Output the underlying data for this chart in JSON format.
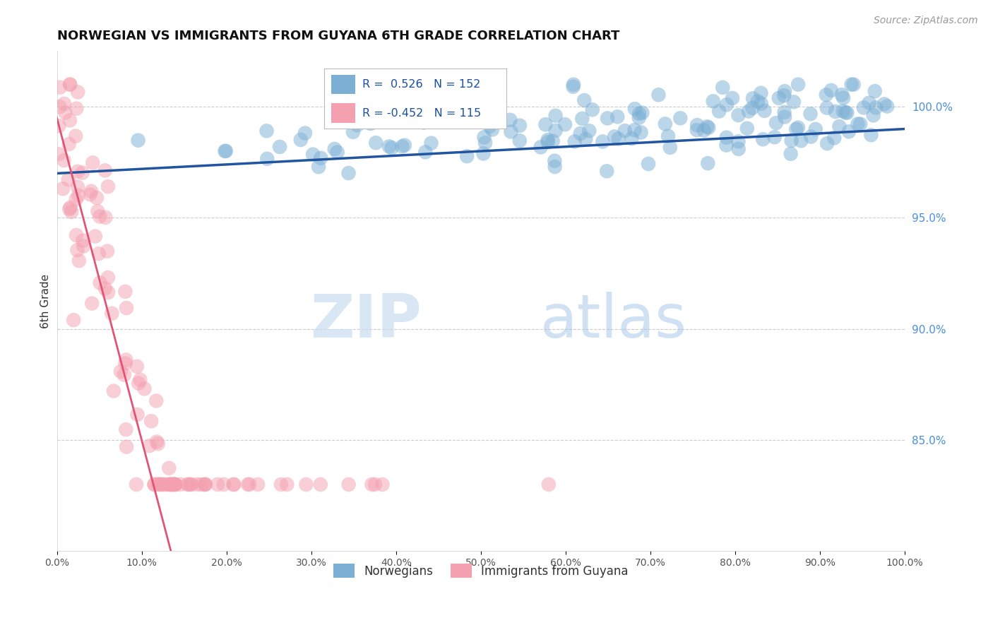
{
  "title": "NORWEGIAN VS IMMIGRANTS FROM GUYANA 6TH GRADE CORRELATION CHART",
  "source": "Source: ZipAtlas.com",
  "ylabel": "6th Grade",
  "norwegian_R": 0.526,
  "norwegian_N": 152,
  "guyana_R": -0.452,
  "guyana_N": 115,
  "norwegian_color": "#7bafd4",
  "guyana_color": "#f4a0b0",
  "norwegian_line_color": "#2255a0",
  "guyana_line_color": "#e05575",
  "guyana_dash_color": "#e0a0b0",
  "legend_norwegian": "Norwegians",
  "legend_guyana": "Immigrants from Guyana",
  "right_ytick_labels": [
    "100.0%",
    "95.0%",
    "90.0%",
    "85.0%"
  ],
  "right_ytick_positions": [
    1.0,
    0.95,
    0.9,
    0.85
  ],
  "xmin": 0.0,
  "xmax": 1.0,
  "ymin": 0.8,
  "ymax": 1.025,
  "watermark_zip": "ZIP",
  "watermark_atlas": "atlas",
  "dashed_line_color": "#cccccc",
  "background_color": "#ffffff"
}
